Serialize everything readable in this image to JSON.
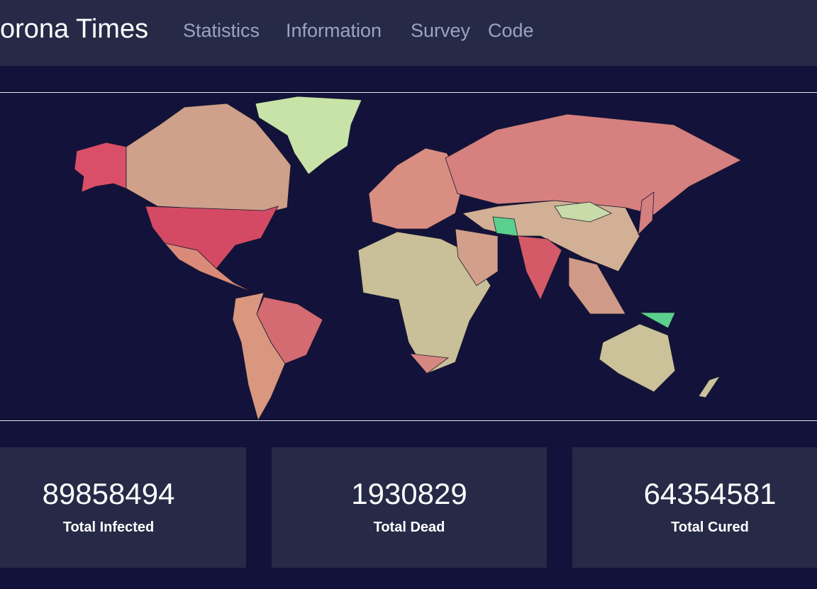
{
  "header": {
    "title": "orona Times",
    "links": [
      "Statistics",
      "Information",
      "Survey",
      "Code"
    ]
  },
  "stats": [
    {
      "value": 89858494,
      "label": "Total Infected"
    },
    {
      "value": 1930829,
      "label": "Total Dead"
    },
    {
      "value": 64354581,
      "label": "Total Cured"
    }
  ]
}
